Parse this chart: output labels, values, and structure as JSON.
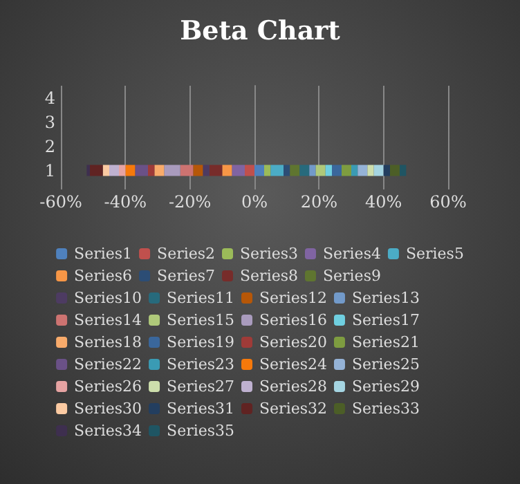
{
  "chart_data": {
    "type": "bar",
    "title": "Beta Chart",
    "orientation": "horizontal",
    "stacked": true,
    "categories": [
      "4",
      "3",
      "2",
      "1"
    ],
    "xlim": [
      -60,
      60
    ],
    "xticks": [
      {
        "value": -60,
        "label": "-60%"
      },
      {
        "value": -40,
        "label": "-40%"
      },
      {
        "value": -20,
        "label": "-20%"
      },
      {
        "value": 0,
        "label": "0%"
      },
      {
        "value": 20,
        "label": "20%"
      },
      {
        "value": 40,
        "label": "40%"
      },
      {
        "value": 60,
        "label": "60%"
      }
    ],
    "grid": "x",
    "legend": "bottom",
    "series": [
      {
        "name": "Series1",
        "color": "#4f81bd",
        "values": [
          null,
          null,
          null,
          3
        ]
      },
      {
        "name": "Series2",
        "color": "#c0504d",
        "values": [
          null,
          null,
          null,
          -3
        ]
      },
      {
        "name": "Series3",
        "color": "#9bbb59",
        "values": [
          null,
          null,
          null,
          2
        ]
      },
      {
        "name": "Series4",
        "color": "#8064a2",
        "values": [
          null,
          null,
          null,
          -4
        ]
      },
      {
        "name": "Series5",
        "color": "#4bacc6",
        "values": [
          null,
          null,
          null,
          4
        ]
      },
      {
        "name": "Series6",
        "color": "#f79646",
        "values": [
          null,
          null,
          null,
          -3
        ]
      },
      {
        "name": "Series7",
        "color": "#2c4d75",
        "values": [
          null,
          null,
          null,
          2
        ]
      },
      {
        "name": "Series8",
        "color": "#772c2a",
        "values": [
          null,
          null,
          null,
          -4
        ]
      },
      {
        "name": "Series9",
        "color": "#5f7530",
        "values": [
          null,
          null,
          null,
          3
        ]
      },
      {
        "name": "Series10",
        "color": "#4d3b62",
        "values": [
          null,
          null,
          null,
          -2
        ]
      },
      {
        "name": "Series11",
        "color": "#276a7c",
        "values": [
          null,
          null,
          null,
          3
        ]
      },
      {
        "name": "Series12",
        "color": "#b65708",
        "values": [
          null,
          null,
          null,
          -3
        ]
      },
      {
        "name": "Series13",
        "color": "#729aca",
        "values": [
          null,
          null,
          null,
          2
        ]
      },
      {
        "name": "Series14",
        "color": "#cd7371",
        "values": [
          null,
          null,
          null,
          -4
        ]
      },
      {
        "name": "Series15",
        "color": "#afc97a",
        "values": [
          null,
          null,
          null,
          3
        ]
      },
      {
        "name": "Series16",
        "color": "#a99bbd",
        "values": [
          null,
          null,
          null,
          -5
        ]
      },
      {
        "name": "Series17",
        "color": "#6fcfe0",
        "values": [
          null,
          null,
          null,
          2
        ]
      },
      {
        "name": "Series18",
        "color": "#f9ab6b",
        "values": [
          null,
          null,
          null,
          -3
        ]
      },
      {
        "name": "Series19",
        "color": "#3a679c",
        "values": [
          null,
          null,
          null,
          3
        ]
      },
      {
        "name": "Series20",
        "color": "#9f3b38",
        "values": [
          null,
          null,
          null,
          -2
        ]
      },
      {
        "name": "Series21",
        "color": "#7e9c40",
        "values": [
          null,
          null,
          null,
          3
        ]
      },
      {
        "name": "Series22",
        "color": "#6a5187",
        "values": [
          null,
          null,
          null,
          -4
        ]
      },
      {
        "name": "Series23",
        "color": "#3a9bb4",
        "values": [
          null,
          null,
          null,
          2
        ]
      },
      {
        "name": "Series24",
        "color": "#f6790b",
        "values": [
          null,
          null,
          null,
          -3
        ]
      },
      {
        "name": "Series25",
        "color": "#95b3d7",
        "values": [
          null,
          null,
          null,
          3
        ]
      },
      {
        "name": "Series26",
        "color": "#e6a3a2",
        "values": [
          null,
          null,
          null,
          -2
        ]
      },
      {
        "name": "Series27",
        "color": "#cddeac",
        "values": [
          null,
          null,
          null,
          2
        ]
      },
      {
        "name": "Series28",
        "color": "#bfb1d0",
        "values": [
          null,
          null,
          null,
          -3
        ]
      },
      {
        "name": "Series29",
        "color": "#a5d5e2",
        "values": [
          null,
          null,
          null,
          3
        ]
      },
      {
        "name": "Series30",
        "color": "#fbcaa2",
        "values": [
          null,
          null,
          null,
          -2
        ]
      },
      {
        "name": "Series31",
        "color": "#233e5f",
        "values": [
          null,
          null,
          null,
          2
        ]
      },
      {
        "name": "Series32",
        "color": "#602322",
        "values": [
          null,
          null,
          null,
          -4
        ]
      },
      {
        "name": "Series33",
        "color": "#4c5e27",
        "values": [
          null,
          null,
          null,
          3
        ]
      },
      {
        "name": "Series34",
        "color": "#3e2f4f",
        "values": [
          null,
          null,
          null,
          -1
        ]
      },
      {
        "name": "Series35",
        "color": "#1f5563",
        "values": [
          null,
          null,
          null,
          2
        ]
      }
    ]
  }
}
